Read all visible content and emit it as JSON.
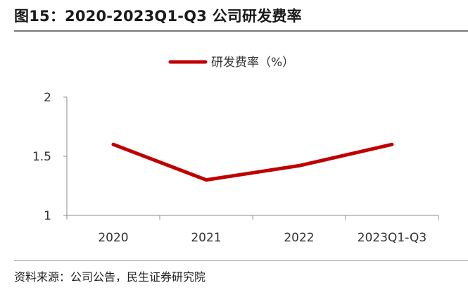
{
  "title": "图15：2020-2023Q1-Q3 公司研发费率",
  "source": "资料来源：公司公告，民生证券研究院",
  "chart_data": {
    "type": "line",
    "title": "",
    "xlabel": "",
    "ylabel": "",
    "categories": [
      "2020",
      "2021",
      "2022",
      "2023Q1-Q3"
    ],
    "series": [
      {
        "name": "研发费率（%）",
        "values": [
          1.6,
          1.3,
          1.42,
          1.6
        ],
        "color": "#c00000"
      }
    ],
    "ylim": [
      1,
      2
    ],
    "yticks": [
      "1",
      "1.5",
      "2"
    ],
    "grid": false,
    "legend": "top-center"
  }
}
